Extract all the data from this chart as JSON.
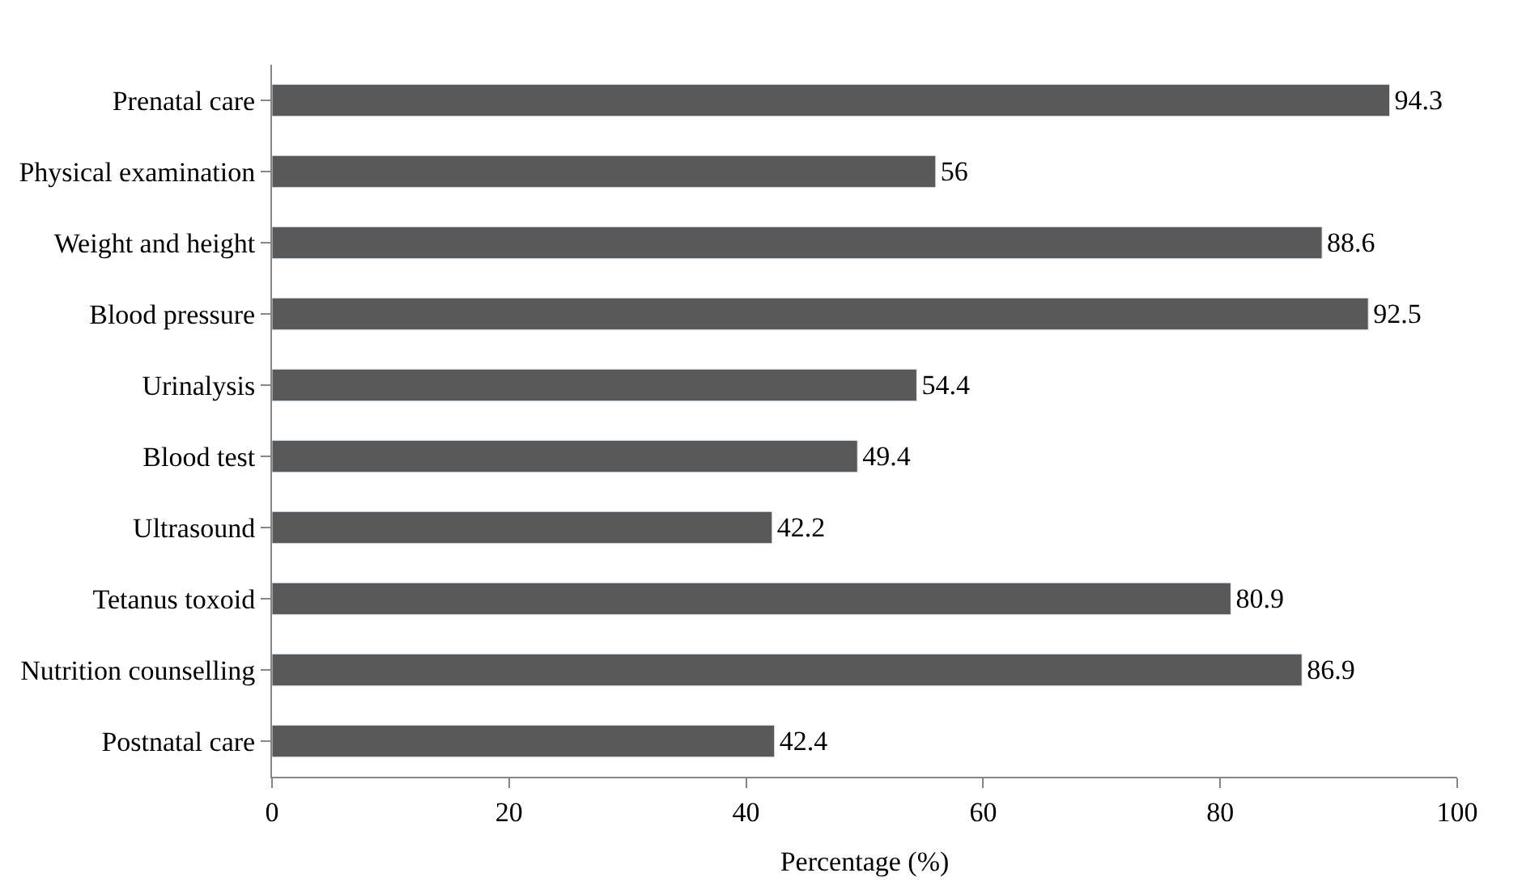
{
  "chart_data": {
    "type": "bar",
    "orientation": "horizontal",
    "xlabel": "Percentage (%)",
    "categories": [
      "Prenatal care",
      "Physical examination",
      "Weight and height",
      "Blood pressure",
      "Urinalysis",
      "Blood test",
      "Ultrasound",
      "Tetanus toxoid",
      "Nutrition counselling",
      "Postnatal care"
    ],
    "values": [
      94.3,
      56,
      88.6,
      92.5,
      54.4,
      49.4,
      42.2,
      80.9,
      86.9,
      42.4
    ],
    "color": "#595959",
    "xlim": [
      0,
      100
    ],
    "xticks": [
      0,
      20,
      40,
      60,
      80,
      100
    ],
    "data_labels": true
  }
}
